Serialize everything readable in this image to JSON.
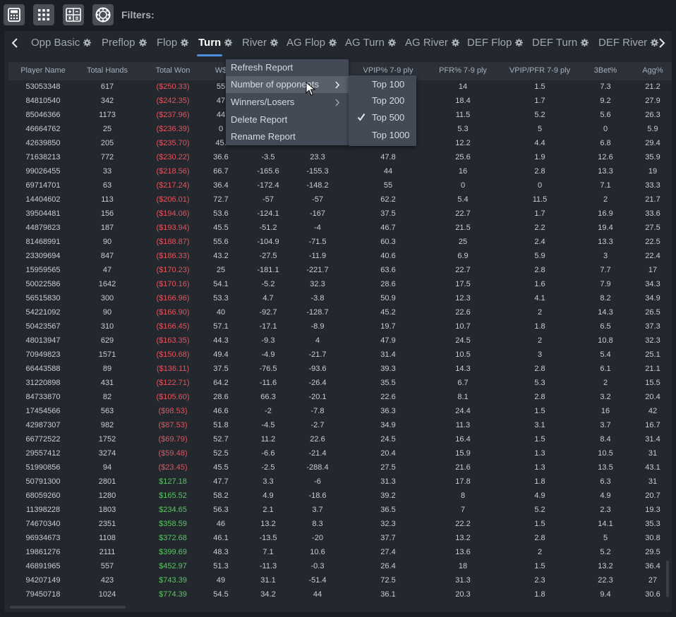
{
  "toolbar": {
    "icons": [
      "calculator-icon",
      "grid-icon",
      "table-calc-icon",
      "poker-chip-icon"
    ],
    "filters_label": "Filters:"
  },
  "tabs": [
    {
      "label": "Opp Basic",
      "active": false
    },
    {
      "label": "Preflop",
      "active": false
    },
    {
      "label": "Flop",
      "active": false
    },
    {
      "label": "Turn",
      "active": true
    },
    {
      "label": "River",
      "active": false
    },
    {
      "label": "AG Flop",
      "active": false
    },
    {
      "label": "AG Turn",
      "active": false
    },
    {
      "label": "AG River",
      "active": false
    },
    {
      "label": "DEF Flop",
      "active": false
    },
    {
      "label": "DEF Turn",
      "active": false
    },
    {
      "label": "DEF River",
      "active": false
    }
  ],
  "columns": [
    "Player Name",
    "Total Hands",
    "Total Won",
    "W$",
    "",
    "",
    "VPIP% 7-9 ply",
    "PFR% 7-9 ply",
    "VPIP/PFR 7-9 ply",
    "3Bet%",
    "Agg%"
  ],
  "rows": [
    [
      "53053348",
      "617",
      "($250.33)",
      "55",
      "",
      "",
      "",
      "14",
      "1.5",
      "7.3",
      "21.2"
    ],
    [
      "84810540",
      "342",
      "($242.35)",
      "47",
      "",
      "",
      "",
      "18.4",
      "1.7",
      "9.2",
      "27.9"
    ],
    [
      "85046366",
      "1173",
      "($237.96)",
      "44",
      "",
      "",
      "",
      "11.5",
      "5.2",
      "5.6",
      "26.3"
    ],
    [
      "46664762",
      "25",
      "($236.39)",
      "0",
      "",
      "",
      "",
      "5.3",
      "5",
      "0",
      "5.9"
    ],
    [
      "42639850",
      "205",
      "($235.70)",
      "45.",
      "",
      "",
      "",
      "12.2",
      "4.4",
      "6.8",
      "29.4"
    ],
    [
      "71638213",
      "772",
      "($230.22)",
      "36.6",
      "-3.5",
      "23.3",
      "47.8",
      "25.6",
      "1.9",
      "12.6",
      "35.9"
    ],
    [
      "99026455",
      "33",
      "($218.56)",
      "66.7",
      "-165.6",
      "-155.3",
      "44",
      "16",
      "2.8",
      "13.3",
      "19"
    ],
    [
      "69714701",
      "63",
      "($217.24)",
      "36.4",
      "-172.4",
      "-148.2",
      "55",
      "0",
      "0",
      "7.1",
      "33.3"
    ],
    [
      "14404602",
      "113",
      "($206.01)",
      "72.7",
      "-57",
      "-57",
      "62.2",
      "5.4",
      "11.5",
      "2",
      "21.7"
    ],
    [
      "39504481",
      "156",
      "($194.06)",
      "53.6",
      "-124.1",
      "-167",
      "37.5",
      "22.7",
      "1.7",
      "16.9",
      "33.6"
    ],
    [
      "44879823",
      "187",
      "($193.94)",
      "45.5",
      "-51.2",
      "-4",
      "46.7",
      "21.5",
      "2.2",
      "19.4",
      "27.5"
    ],
    [
      "81468991",
      "90",
      "($188.87)",
      "55.6",
      "-104.9",
      "-71.5",
      "60.3",
      "25",
      "2.4",
      "13.3",
      "22.5"
    ],
    [
      "23309694",
      "847",
      "($186.33)",
      "43.2",
      "-27.5",
      "-11.9",
      "40.6",
      "6.9",
      "5.9",
      "3",
      "22.4"
    ],
    [
      "15959565",
      "47",
      "($170.23)",
      "25",
      "-181.1",
      "-221.7",
      "63.6",
      "22.7",
      "2.8",
      "7.7",
      "17"
    ],
    [
      "50022586",
      "1642",
      "($170.16)",
      "54.1",
      "-5.2",
      "32.3",
      "28.6",
      "17.5",
      "1.6",
      "7.9",
      "34.3"
    ],
    [
      "56515830",
      "300",
      "($166.96)",
      "53.3",
      "4.7",
      "-3.8",
      "50.9",
      "12.3",
      "4.1",
      "8.2",
      "34.9"
    ],
    [
      "54221092",
      "90",
      "($166.90)",
      "40",
      "-92.7",
      "-128.7",
      "45.2",
      "22.6",
      "2",
      "14.3",
      "26.5"
    ],
    [
      "50423567",
      "310",
      "($166.45)",
      "57.1",
      "-17.1",
      "-8.9",
      "19.7",
      "10.7",
      "1.8",
      "6.5",
      "37.3"
    ],
    [
      "48013947",
      "629",
      "($163.35)",
      "44.3",
      "-9.3",
      "4",
      "47.9",
      "24.5",
      "2",
      "10.8",
      "32.3"
    ],
    [
      "70949823",
      "1571",
      "($150.68)",
      "49.4",
      "-4.9",
      "-21.7",
      "31.4",
      "10.5",
      "3",
      "5.4",
      "25.1"
    ],
    [
      "66443588",
      "89",
      "($136.11)",
      "37.5",
      "-76.5",
      "-93.6",
      "39.3",
      "14.3",
      "2.8",
      "6.1",
      "21.1"
    ],
    [
      "31220898",
      "431",
      "($122.71)",
      "64.2",
      "-11.6",
      "-26.4",
      "35.5",
      "6.7",
      "5.3",
      "2",
      "15.5"
    ],
    [
      "84733870",
      "82",
      "($105.60)",
      "28.6",
      "66.3",
      "-20.1",
      "22.6",
      "8.1",
      "2.8",
      "3.2",
      "20.4"
    ],
    [
      "17454566",
      "563",
      "($98.53)",
      "46.6",
      "-2",
      "-7.8",
      "36.3",
      "24.4",
      "1.5",
      "16",
      "42"
    ],
    [
      "42987307",
      "982",
      "($87.53)",
      "51.8",
      "-4.5",
      "-2.7",
      "34.9",
      "11.3",
      "3.1",
      "3.7",
      "16.7"
    ],
    [
      "66772522",
      "1752",
      "($69.79)",
      "52.7",
      "11.2",
      "22.6",
      "24.5",
      "16.4",
      "1.5",
      "8.4",
      "31.4"
    ],
    [
      "29557412",
      "3274",
      "($59.48)",
      "52.5",
      "-6.6",
      "-21.4",
      "20.4",
      "15.9",
      "1.3",
      "10.5",
      "31"
    ],
    [
      "51990856",
      "94",
      "($23.45)",
      "45.5",
      "-2.5",
      "-288.4",
      "27.5",
      "21.6",
      "1.3",
      "13.5",
      "43.1"
    ],
    [
      "50791300",
      "2801",
      "$127.18",
      "47.7",
      "3.3",
      "-6",
      "31.3",
      "17.8",
      "1.8",
      "6.3",
      "31"
    ],
    [
      "68059260",
      "1280",
      "$165.52",
      "58.2",
      "4.9",
      "-18.6",
      "39.2",
      "8",
      "4.9",
      "4.9",
      "20.7"
    ],
    [
      "11398228",
      "1803",
      "$234.65",
      "56.3",
      "2.1",
      "3.7",
      "36.5",
      "7",
      "5.2",
      "2.3",
      "19.3"
    ],
    [
      "74670340",
      "2351",
      "$358.59",
      "46",
      "13.2",
      "8.3",
      "32.3",
      "22.2",
      "1.5",
      "14.1",
      "35.3"
    ],
    [
      "96934673",
      "1108",
      "$372.68",
      "46.1",
      "-13.5",
      "-20",
      "37.7",
      "13.2",
      "2.8",
      "5",
      "30.8"
    ],
    [
      "19861276",
      "2111",
      "$399.69",
      "48.3",
      "7.1",
      "10.6",
      "27.4",
      "13.6",
      "2",
      "5.2",
      "29.5"
    ],
    [
      "46891965",
      "557",
      "$452.97",
      "51.3",
      "-11.3",
      "-0.3",
      "26.4",
      "18",
      "1.5",
      "13.2",
      "36.4"
    ],
    [
      "94207149",
      "423",
      "$743.39",
      "49",
      "31.1",
      "-51.4",
      "72.5",
      "31.3",
      "2.3",
      "22.3",
      "27"
    ],
    [
      "79450718",
      "1024",
      "$774.39",
      "54.5",
      "34.2",
      "44",
      "36.1",
      "20.3",
      "1.8",
      "9.4",
      "30.6"
    ]
  ],
  "context_menu": {
    "items": [
      {
        "label": "Refresh Report",
        "submenu": false
      },
      {
        "label": "Number of opponents",
        "submenu": true
      },
      {
        "label": "Winners/Losers",
        "submenu": true
      },
      {
        "label": "Delete Report",
        "submenu": false
      },
      {
        "label": "Rename Report",
        "submenu": false
      }
    ],
    "submenu": [
      {
        "label": "Top 100",
        "checked": false
      },
      {
        "label": "Top 200",
        "checked": false
      },
      {
        "label": "Top 500",
        "checked": true
      },
      {
        "label": "Top 1000",
        "checked": false
      }
    ]
  },
  "colors": {
    "accent": "#4f8de0",
    "negative": "#e0555e",
    "positive": "#5cc463"
  }
}
